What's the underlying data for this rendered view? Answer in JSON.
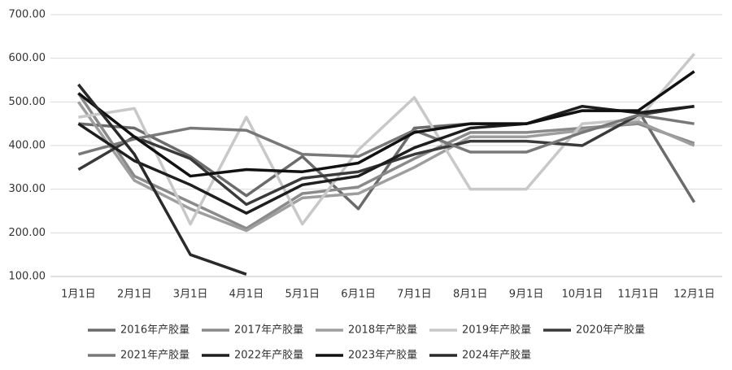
{
  "chart_data": {
    "type": "line",
    "categories": [
      "1月1日",
      "2月1日",
      "3月1日",
      "4月1日",
      "5月1日",
      "6月1日",
      "7月1日",
      "8月1日",
      "9月1日",
      "10月1日",
      "11月1日",
      "12月1日"
    ],
    "series": [
      {
        "name": "2016年产胶量",
        "color": "#6b6b6b",
        "values": [
          450,
          440,
          375,
          285,
          375,
          255,
          440,
          450,
          450,
          480,
          480,
          270
        ]
      },
      {
        "name": "2017年产胶量",
        "color": "#8a8a8a",
        "values": [
          520,
          330,
          270,
          210,
          290,
          305,
          370,
          430,
          430,
          440,
          450,
          405
        ]
      },
      {
        "name": "2018年产胶量",
        "color": "#9e9e9e",
        "values": [
          500,
          320,
          255,
          205,
          280,
          290,
          350,
          420,
          420,
          435,
          455,
          400
        ]
      },
      {
        "name": "2019年产胶量",
        "color": "#c8c8c8",
        "values": [
          465,
          485,
          220,
          465,
          220,
          390,
          510,
          300,
          300,
          450,
          460,
          610
        ]
      },
      {
        "name": "2020年产胶量",
        "color": "#3a3a3a",
        "values": [
          345,
          420,
          370,
          265,
          325,
          340,
          380,
          410,
          410,
          400,
          470,
          490
        ]
      },
      {
        "name": "2021年产胶量",
        "color": "#787878",
        "values": [
          380,
          415,
          440,
          435,
          380,
          375,
          435,
          385,
          385,
          430,
          470,
          450
        ]
      },
      {
        "name": "2022年产胶量",
        "color": "#1e1e1e",
        "values": [
          450,
          365,
          310,
          245,
          310,
          330,
          395,
          440,
          450,
          490,
          475,
          490
        ]
      },
      {
        "name": "2023年产胶量",
        "color": "#111111",
        "values": [
          520,
          420,
          330,
          345,
          340,
          360,
          430,
          450,
          450,
          480,
          480,
          570
        ]
      },
      {
        "name": "2024年产胶量",
        "color": "#2a2a2a",
        "values": [
          540,
          380,
          150,
          105,
          null,
          null,
          null,
          null,
          null,
          null,
          null,
          null
        ]
      }
    ],
    "ylim": [
      100,
      700
    ],
    "yticks": [
      {
        "value": 100,
        "label": "100.00"
      },
      {
        "value": 200,
        "label": "200.00"
      },
      {
        "value": 300,
        "label": "300.00"
      },
      {
        "value": 400,
        "label": "400.00"
      },
      {
        "value": 500,
        "label": "500.00"
      },
      {
        "value": 600,
        "label": "600.00"
      },
      {
        "value": 700,
        "label": "700.00"
      }
    ],
    "grid": true,
    "legend": "bottom"
  }
}
